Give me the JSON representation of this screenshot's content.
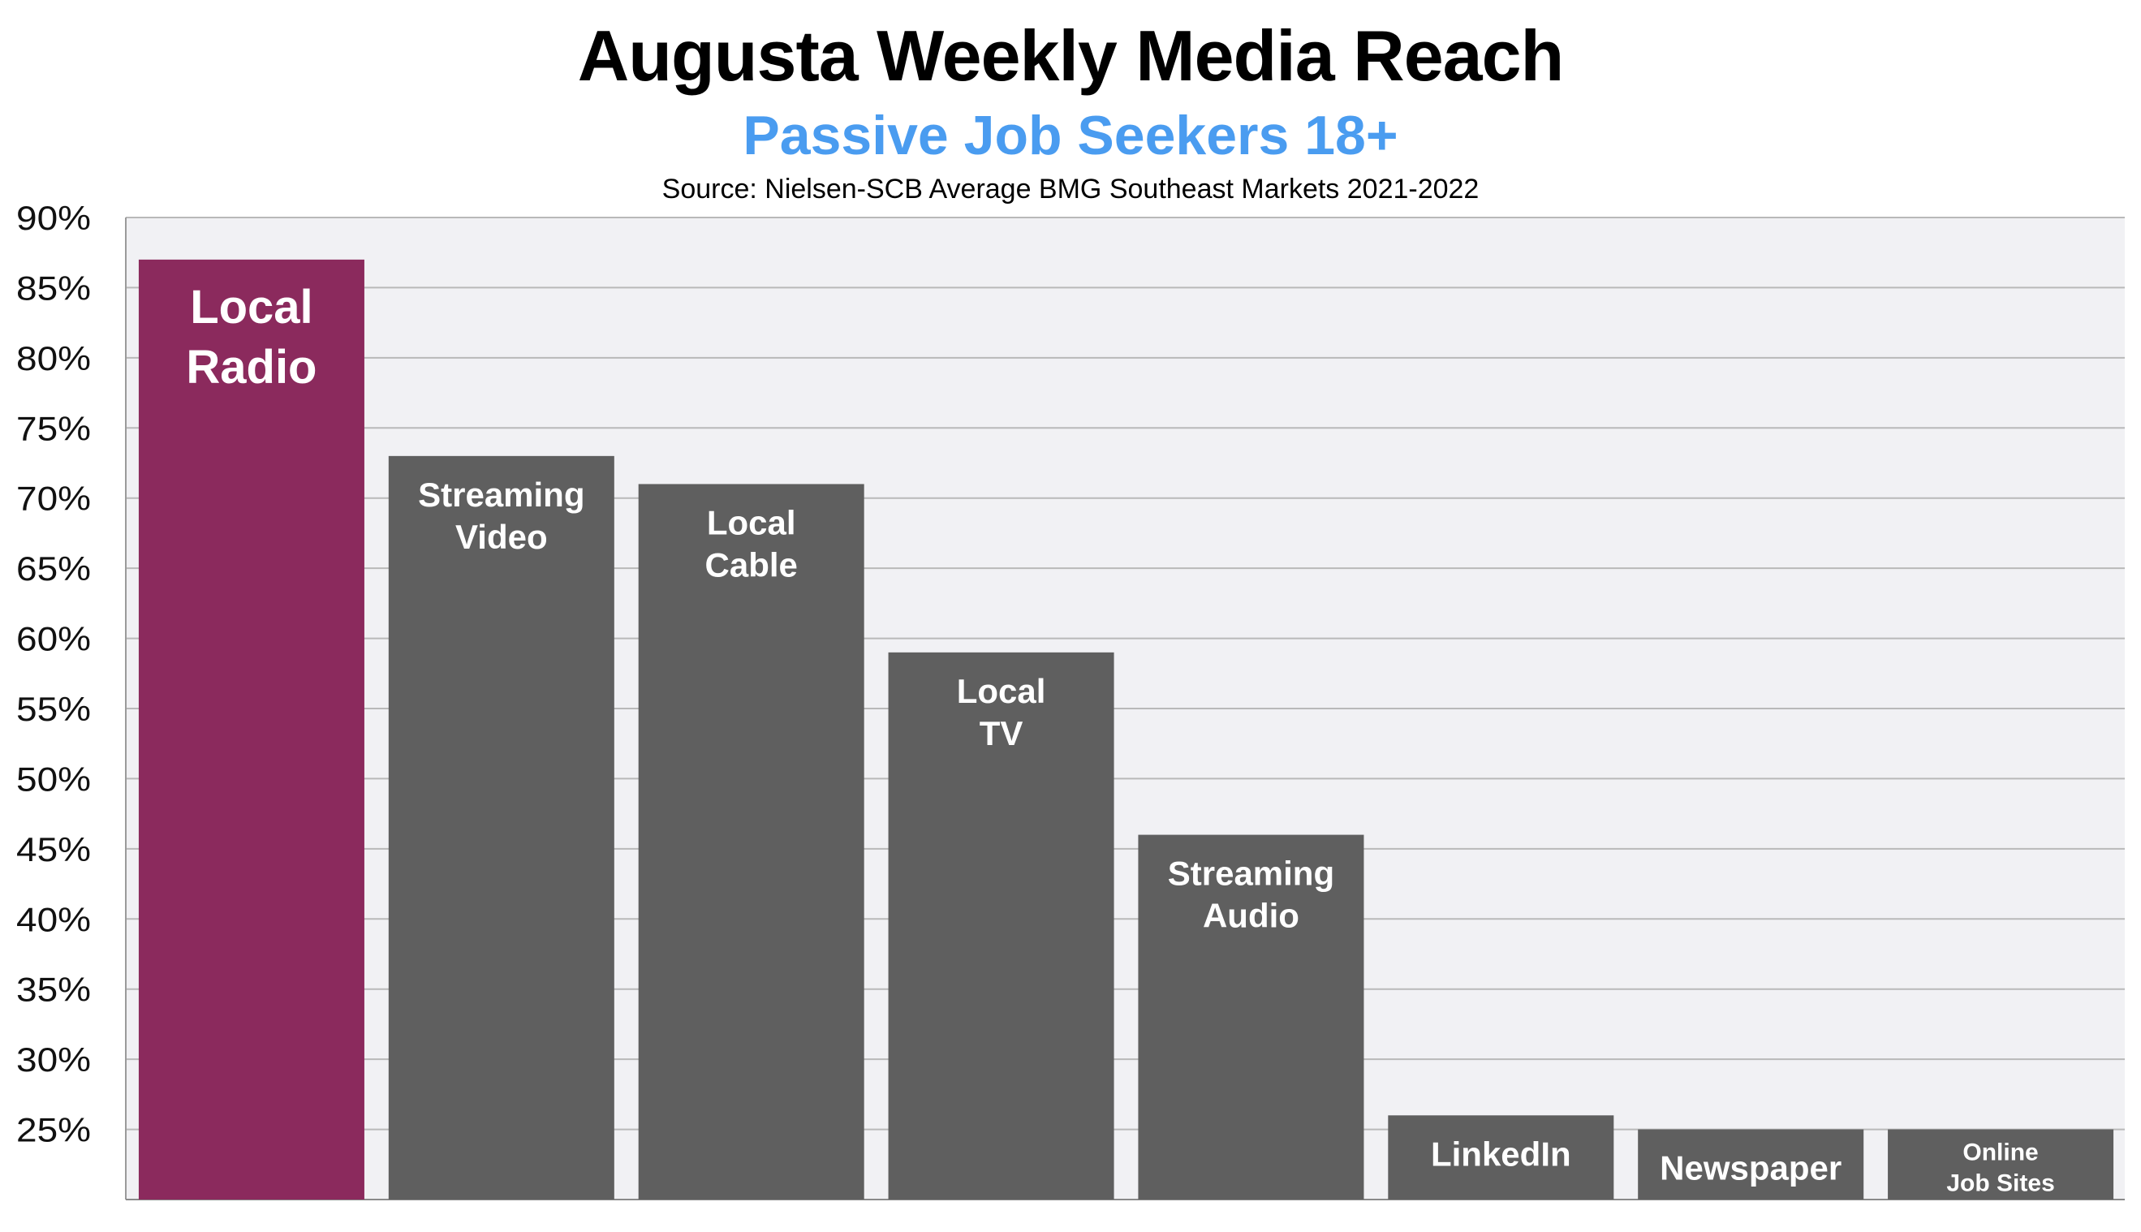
{
  "chart_data": {
    "type": "bar",
    "title": "Augusta Weekly Media Reach",
    "subtitle": "Passive Job Seekers 18+",
    "source": "Source: Nielsen-SCB Average BMG Southeast Markets 2021-2022",
    "categories": [
      [
        "Local",
        "Radio"
      ],
      [
        "Streaming",
        "Video"
      ],
      [
        "Local",
        "Cable"
      ],
      [
        "Local",
        "TV"
      ],
      [
        "Streaming",
        "Audio"
      ],
      [
        "LinkedIn"
      ],
      [
        "Newspaper"
      ],
      [
        "Online",
        "Job Sites"
      ]
    ],
    "values": [
      87,
      73,
      71,
      59,
      46,
      26,
      25,
      25
    ],
    "highlight_index": 0,
    "ylim": [
      20,
      90
    ],
    "yticks": [
      "25%",
      "30%",
      "35%",
      "40%",
      "45%",
      "50%",
      "55%",
      "60%",
      "65%",
      "70%",
      "75%",
      "80%",
      "85%",
      "90%"
    ],
    "ytick_values": [
      25,
      30,
      35,
      40,
      45,
      50,
      55,
      60,
      65,
      70,
      75,
      80,
      85,
      90
    ],
    "grid": true,
    "legend": "none",
    "colors": {
      "highlight": "#8b2a5d",
      "bar": "#5f5f5f",
      "plot_background": "#f1f1f4",
      "grid": "#b9b9b9",
      "subtitle": "#4a9cf0"
    }
  }
}
